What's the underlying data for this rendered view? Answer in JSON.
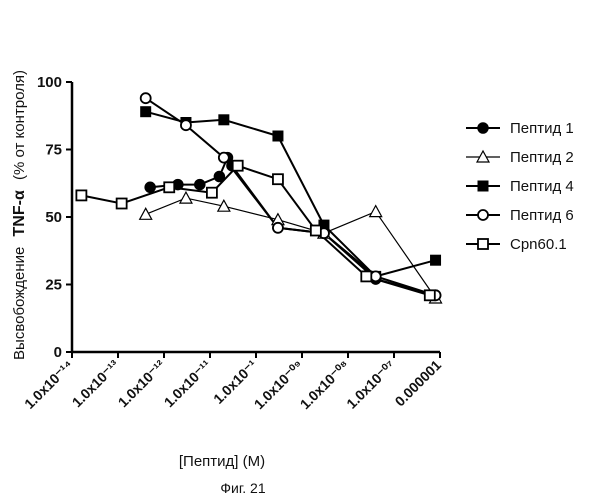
{
  "chart_data": {
    "type": "line",
    "xlabel": "[Пептид] (M)",
    "ylabel_prefix": "Высвобождение",
    "ylabel_bold": "TNF-α",
    "ylabel_suffix": "(% от контроля)",
    "caption": "Фиг. 21",
    "ylim": [
      0,
      100
    ],
    "yticks": [
      0,
      25,
      50,
      75,
      100
    ],
    "xscale": "log",
    "xlim": [
      1e-14,
      1e-06
    ],
    "xtick_labels": [
      "1.0x10⁻¹⁴",
      "1.0x10⁻¹³",
      "1.0x10⁻¹²",
      "1.0x10⁻¹¹",
      "1.0x10⁻¹",
      "1.0x10⁻⁰⁹",
      "1.0x10⁻⁰⁸",
      "1.0x10⁻⁰⁷",
      "0.000001"
    ],
    "legend_position": "right",
    "series": [
      {
        "name": "Пептид 1",
        "marker": "filled-circle",
        "x": [
          5e-13,
          2e-12,
          6e-12,
          1.6e-11,
          2.4e-11,
          3e-11,
          3e-10,
          3e-09,
          4e-08,
          8e-07
        ],
        "y": [
          61,
          62,
          62,
          65,
          72,
          69,
          46,
          44,
          27,
          21
        ]
      },
      {
        "name": "Пептид 2",
        "marker": "open-triangle",
        "x": [
          4e-13,
          3e-12,
          2e-11,
          3e-10,
          3e-09,
          4e-08,
          8e-07
        ],
        "y": [
          51,
          57,
          54,
          49,
          44,
          52,
          20
        ]
      },
      {
        "name": "Пептид 4",
        "marker": "filled-square",
        "x": [
          4e-13,
          3e-12,
          2e-11,
          3e-10,
          3e-09,
          4e-08,
          8e-07
        ],
        "y": [
          89,
          85,
          86,
          80,
          47,
          28,
          34
        ]
      },
      {
        "name": "Пептид 6",
        "marker": "open-circle",
        "x": [
          4e-13,
          3e-12,
          2e-11,
          3e-10,
          3e-09,
          4e-08,
          8e-07
        ],
        "y": [
          94,
          84,
          72,
          46,
          44,
          28,
          21
        ]
      },
      {
        "name": "Cpn60.1",
        "marker": "open-square",
        "x": [
          1.6e-14,
          1.2e-13,
          1.3e-12,
          1.1e-11,
          4e-11,
          3e-10,
          2e-09,
          2.5e-08,
          6e-07
        ],
        "y": [
          58,
          55,
          61,
          59,
          69,
          64,
          45,
          28,
          21
        ]
      }
    ]
  }
}
